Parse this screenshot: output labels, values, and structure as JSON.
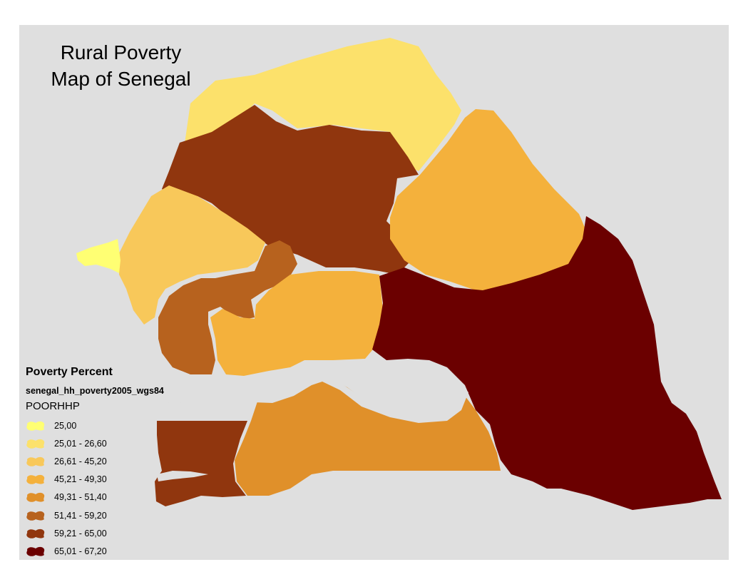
{
  "map": {
    "title_lines": [
      "Rural Poverty",
      "Map of Senegal"
    ],
    "legend": {
      "heading": "Poverty Percent",
      "layer": "senegal_hh_poverty2005_wgs84",
      "field": "POORHHP",
      "classes": [
        {
          "label": "25,00",
          "color": "#ffff73"
        },
        {
          "label": "25,01 - 26,60",
          "color": "#fce16b"
        },
        {
          "label": "26,61 - 45,20",
          "color": "#f8c85a"
        },
        {
          "label": "45,21 - 49,30",
          "color": "#f4b13c"
        },
        {
          "label": "49,31 - 51,40",
          "color": "#e0902a"
        },
        {
          "label": "51,41 - 59,20",
          "color": "#b7621e"
        },
        {
          "label": "59,21 - 65,00",
          "color": "#90360e"
        },
        {
          "label": "65,01 - 67,20",
          "color": "#6b0000"
        }
      ]
    },
    "colors": {
      "background": "#dfdfdf",
      "river": "#dfdfdf"
    }
  }
}
